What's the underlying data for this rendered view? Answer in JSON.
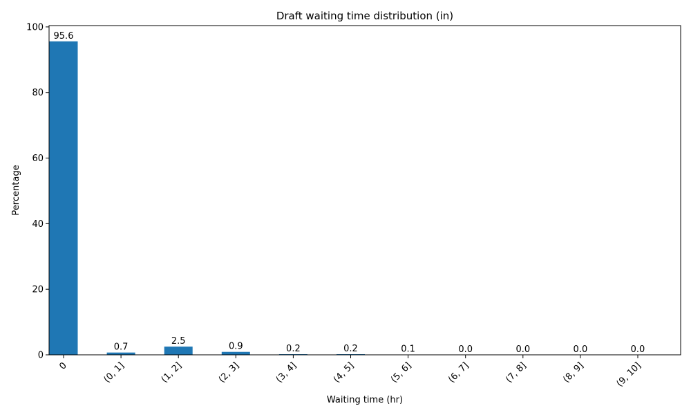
{
  "chart_data": {
    "type": "bar",
    "title": "Draft waiting time distribution (in)",
    "xlabel": "Waiting time (hr)",
    "ylabel": "Percentage",
    "categories": [
      "0",
      "(0, 1]",
      "(1, 2]",
      "(2, 3]",
      "(3, 4]",
      "(4, 5]",
      "(5, 6]",
      "(6, 7]",
      "(7, 8]",
      "(8, 9]",
      "(9, 10]"
    ],
    "values": [
      95.6,
      0.7,
      2.5,
      0.9,
      0.2,
      0.2,
      0.1,
      0.0,
      0.0,
      0.0,
      0.0
    ],
    "value_labels": [
      "95.6",
      "0.7",
      "2.5",
      "0.9",
      "0.2",
      "0.2",
      "0.1",
      "0.0",
      "0.0",
      "0.0",
      "0.0"
    ],
    "ylim": [
      0,
      100.4
    ],
    "yticks": [
      0,
      20,
      40,
      60,
      80,
      100
    ],
    "grid": false,
    "legend": "none",
    "bar_color": "#1f77b4"
  }
}
